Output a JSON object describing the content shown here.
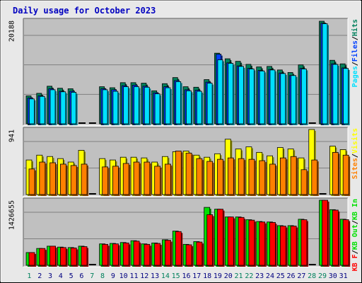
{
  "title": "Daily usage for October 2023",
  "colors": {
    "background": "#e8e8e8",
    "plot": "#c0c0c0",
    "hits": "#00805c",
    "files": "#0040ff",
    "pages": "#00e0ff",
    "visits": "#ffff00",
    "sites": "#ff8000",
    "kbin": "#00e000",
    "kbout": "#ff0000",
    "title": "#0000c0",
    "weekday_label": "#000080",
    "weekend_label": "#00805c"
  },
  "chart_data": [
    {
      "type": "bar",
      "panel": "requests",
      "ymax_label": "20188",
      "ylim": [
        0,
        20188
      ],
      "legend": [
        "Pages",
        "Files",
        "Hits"
      ],
      "categories": [
        "1",
        "2",
        "3",
        "4",
        "5",
        "6",
        "7",
        "8",
        "9",
        "10",
        "11",
        "12",
        "13",
        "14",
        "15",
        "16",
        "17",
        "18",
        "19",
        "20",
        "21",
        "22",
        "23",
        "24",
        "25",
        "26",
        "27",
        "28",
        "29",
        "30",
        "31"
      ],
      "series": [
        {
          "name": "Hits",
          "values": [
            5500,
            6000,
            7400,
            7000,
            6900,
            0,
            0,
            7300,
            7100,
            8100,
            8100,
            8000,
            6500,
            7900,
            9100,
            7300,
            7200,
            8700,
            13900,
            12800,
            12300,
            11700,
            11200,
            11300,
            10600,
            10100,
            11600,
            0,
            20188,
            12500,
            11800
          ]
        },
        {
          "name": "Files",
          "values": [
            5100,
            5500,
            6900,
            6400,
            6400,
            0,
            0,
            6900,
            6700,
            7500,
            7600,
            7400,
            6100,
            7300,
            8500,
            6700,
            6600,
            8200,
            13700,
            12000,
            11400,
            10900,
            10500,
            10700,
            10000,
            9500,
            10900,
            0,
            19800,
            11800,
            11000
          ]
        },
        {
          "name": "Pages",
          "values": [
            4900,
            5400,
            6700,
            6300,
            6200,
            0,
            0,
            6700,
            6400,
            7300,
            7300,
            7200,
            5900,
            7100,
            8300,
            6500,
            6400,
            8000,
            12600,
            11900,
            11300,
            10800,
            10400,
            10600,
            9900,
            9500,
            10800,
            0,
            19700,
            11700,
            10900
          ]
        }
      ]
    },
    {
      "type": "bar",
      "panel": "visitors",
      "ymax_label": "941",
      "ylim": [
        0,
        941
      ],
      "legend": [
        "Sites",
        "Visits"
      ],
      "categories": [
        "1",
        "2",
        "3",
        "4",
        "5",
        "6",
        "7",
        "8",
        "9",
        "10",
        "11",
        "12",
        "13",
        "14",
        "15",
        "16",
        "17",
        "18",
        "19",
        "20",
        "21",
        "22",
        "23",
        "24",
        "25",
        "26",
        "27",
        "28",
        "29",
        "30",
        "31"
      ],
      "series": [
        {
          "name": "Visits",
          "values": [
            500,
            570,
            550,
            520,
            470,
            640,
            0,
            520,
            500,
            540,
            540,
            530,
            470,
            550,
            620,
            630,
            570,
            540,
            590,
            800,
            660,
            690,
            610,
            560,
            680,
            660,
            530,
            941,
            0,
            700,
            650
          ]
        },
        {
          "name": "Sites",
          "values": [
            370,
            470,
            460,
            440,
            420,
            440,
            0,
            400,
            410,
            450,
            470,
            470,
            410,
            440,
            630,
            600,
            520,
            480,
            510,
            530,
            520,
            510,
            490,
            440,
            530,
            550,
            360,
            500,
            0,
            610,
            570
          ]
        }
      ]
    },
    {
      "type": "bar",
      "panel": "traffic",
      "ymax_label": "1426655",
      "ylim": [
        0,
        1426655
      ],
      "legend": [
        "KB F",
        "KB Out",
        "KB In"
      ],
      "categories": [
        "1",
        "2",
        "3",
        "4",
        "5",
        "6",
        "7",
        "8",
        "9",
        "10",
        "11",
        "12",
        "13",
        "14",
        "15",
        "16",
        "17",
        "18",
        "19",
        "20",
        "21",
        "22",
        "23",
        "24",
        "25",
        "26",
        "27",
        "28",
        "29",
        "30",
        "31"
      ],
      "series": [
        {
          "name": "KB In",
          "values": [
            280000,
            370000,
            420000,
            400000,
            390000,
            420000,
            0,
            470000,
            480000,
            500000,
            540000,
            470000,
            490000,
            560000,
            750000,
            460000,
            520000,
            1270000,
            1230000,
            1060000,
            1060000,
            1000000,
            960000,
            950000,
            870000,
            870000,
            1010000,
            0,
            1426655,
            1220000,
            1010000
          ]
        },
        {
          "name": "KB Out",
          "values": [
            280000,
            370000,
            420000,
            390000,
            380000,
            410000,
            0,
            460000,
            470000,
            490000,
            530000,
            460000,
            480000,
            550000,
            740000,
            450000,
            510000,
            1110000,
            1230000,
            1060000,
            1050000,
            990000,
            950000,
            940000,
            860000,
            860000,
            1000000,
            0,
            1426655,
            1210000,
            1000000
          ]
        }
      ]
    }
  ]
}
